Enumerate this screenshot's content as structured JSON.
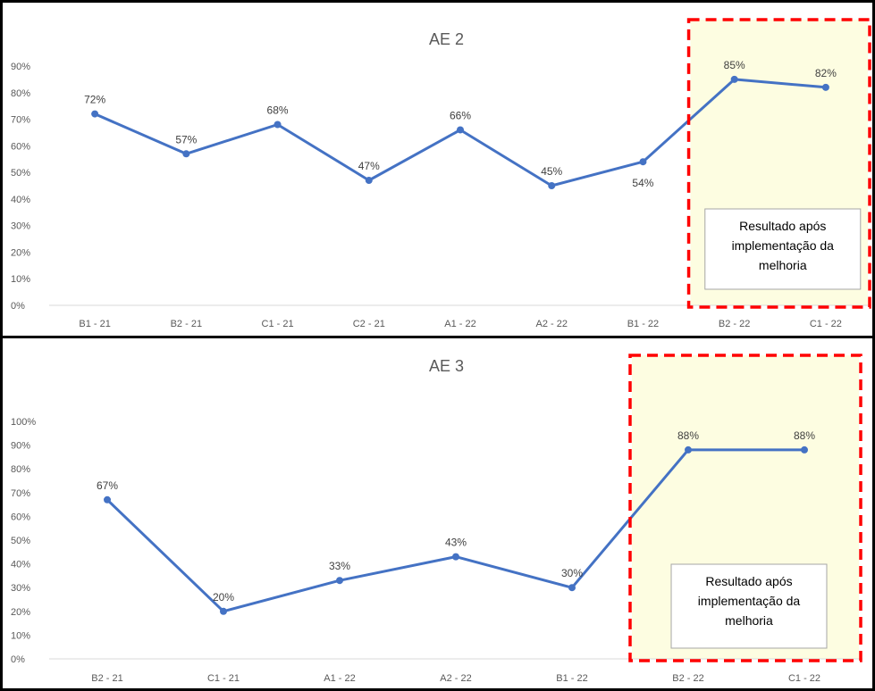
{
  "chart_data": [
    {
      "type": "line",
      "title": "AE 2",
      "categories": [
        "B1 - 21",
        "B2 - 21",
        "C1 - 21",
        "C2 - 21",
        "A1 - 22",
        "A2 - 22",
        "B1 - 22",
        "B2 - 22",
        "C1 - 22"
      ],
      "series": [
        {
          "values": [
            72,
            57,
            68,
            47,
            66,
            45,
            54,
            85,
            82
          ],
          "color": "#4472c4"
        }
      ],
      "data_labels": [
        "72%",
        "57%",
        "68%",
        "47%",
        "66%",
        "45%",
        "54%",
        "85%",
        "82%"
      ],
      "y_ticks": [
        "0%",
        "10%",
        "20%",
        "30%",
        "40%",
        "50%",
        "60%",
        "70%",
        "80%",
        "90%"
      ],
      "ylim": [
        0,
        90
      ],
      "grid": false,
      "legend": "none",
      "annotation": {
        "lines": [
          "Resultado após",
          "implementação da",
          "melhoria"
        ],
        "highlight_categories": [
          "B2 - 22",
          "C1 - 22"
        ],
        "highlight_color": "#fdfde1",
        "border_color": "#ff0000"
      }
    },
    {
      "type": "line",
      "title": "AE 3",
      "categories": [
        "B2 - 21",
        "C1 - 21",
        "A1 - 22",
        "A2 - 22",
        "B1 - 22",
        "B2 - 22",
        "C1 - 22"
      ],
      "series": [
        {
          "values": [
            67,
            20,
            33,
            43,
            30,
            88,
            88
          ],
          "color": "#4472c4"
        }
      ],
      "data_labels": [
        "67%",
        "20%",
        "33%",
        "43%",
        "30%",
        "88%",
        "88%"
      ],
      "y_ticks": [
        "0%",
        "10%",
        "20%",
        "30%",
        "40%",
        "50%",
        "60%",
        "70%",
        "80%",
        "90%",
        "100%"
      ],
      "ylim": [
        0,
        100
      ],
      "grid": false,
      "legend": "none",
      "annotation": {
        "lines": [
          "Resultado após",
          "implementação da",
          "melhoria"
        ],
        "highlight_categories": [
          "B2 - 22",
          "C1 - 22"
        ],
        "highlight_color": "#fdfde1",
        "border_color": "#ff0000"
      }
    }
  ]
}
